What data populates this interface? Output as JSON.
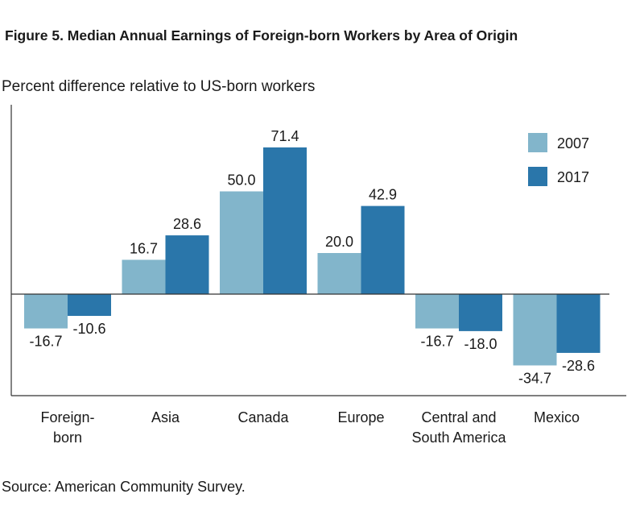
{
  "title": "Figure 5. Median Annual Earnings of Foreign-born Workers by Area of Origin",
  "source": "Source: American Community Survey.",
  "colors": {
    "series_2007": "#82b5cb",
    "series_2017": "#2a76aa",
    "axis": "#333333"
  },
  "chart_data": {
    "type": "bar",
    "ylabel": "Percent difference relative to US-born workers",
    "categories": [
      [
        "Foreign-",
        "born"
      ],
      [
        "Asia"
      ],
      [
        "Canada"
      ],
      [
        "Europe"
      ],
      [
        "Central and",
        "South America"
      ],
      [
        "Mexico"
      ]
    ],
    "series": [
      {
        "name": "2007",
        "values": [
          -16.7,
          16.7,
          50.0,
          20.0,
          -16.7,
          -34.7
        ],
        "labels": [
          "-16.7",
          "16.7",
          "50.0",
          "20.0",
          "-16.7",
          "-34.7"
        ]
      },
      {
        "name": "2017",
        "values": [
          -10.6,
          28.6,
          71.4,
          42.9,
          -18.0,
          -28.6
        ],
        "labels": [
          "-10.6",
          "28.6",
          "71.4",
          "42.9",
          "-18.0",
          "-28.6"
        ]
      }
    ],
    "ylim": [
      -50,
      92
    ],
    "grid": false,
    "legend": "top-right"
  }
}
